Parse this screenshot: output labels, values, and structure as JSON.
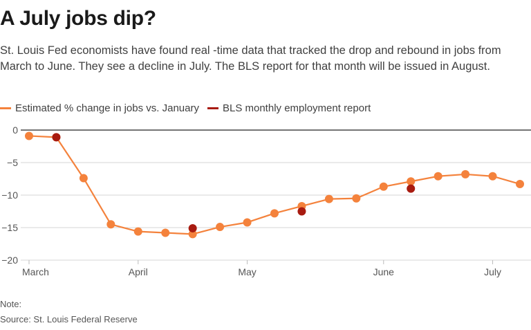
{
  "title": "A July jobs dip?",
  "subtitle": "St. Louis Fed economists have found real -time data that tracked the drop and rebound in jobs from March to June. They see a decline in July. The BLS report for that month will be issued in August.",
  "note": "Note:",
  "source": "Source: St. Louis Federal Reserve",
  "colors": {
    "estimate": "#f4823c",
    "bls": "#a81b10",
    "zero_line": "#222222",
    "grid": "#d6d6d6",
    "tick_text": "#555555"
  },
  "chart_data": {
    "type": "line",
    "xlabel": "",
    "ylabel": "",
    "ylim": [
      -20,
      0
    ],
    "yticks": [
      0,
      -5,
      -10,
      -15,
      -20
    ],
    "ytick_labels": [
      "0",
      "−5",
      "−10",
      "−15",
      "−20"
    ],
    "x_axis_labels": [
      "March",
      "April",
      "May",
      "June",
      "July"
    ],
    "x_axis_label_positions": [
      0,
      4,
      8,
      13,
      17
    ],
    "grid": true,
    "legend_position": "top-left",
    "series": [
      {
        "name": "Estimated % change in jobs vs. January",
        "style": "line-markers",
        "x": [
          0,
          1,
          2,
          3,
          4,
          5,
          6,
          7,
          8,
          9,
          10,
          11,
          12,
          13,
          14,
          15,
          16,
          17,
          18
        ],
        "values": [
          -0.9,
          -1.1,
          -7.4,
          -14.5,
          -15.6,
          -15.8,
          -16.0,
          -14.9,
          -14.2,
          -12.8,
          -11.7,
          -10.6,
          -10.5,
          -8.7,
          -7.9,
          -7.1,
          -6.8,
          -7.1,
          -8.3
        ]
      },
      {
        "name": "BLS monthly employment report",
        "style": "markers",
        "x": [
          1,
          6,
          10,
          14
        ],
        "values": [
          -1.1,
          -15.1,
          -12.5,
          -9.0
        ]
      }
    ]
  }
}
